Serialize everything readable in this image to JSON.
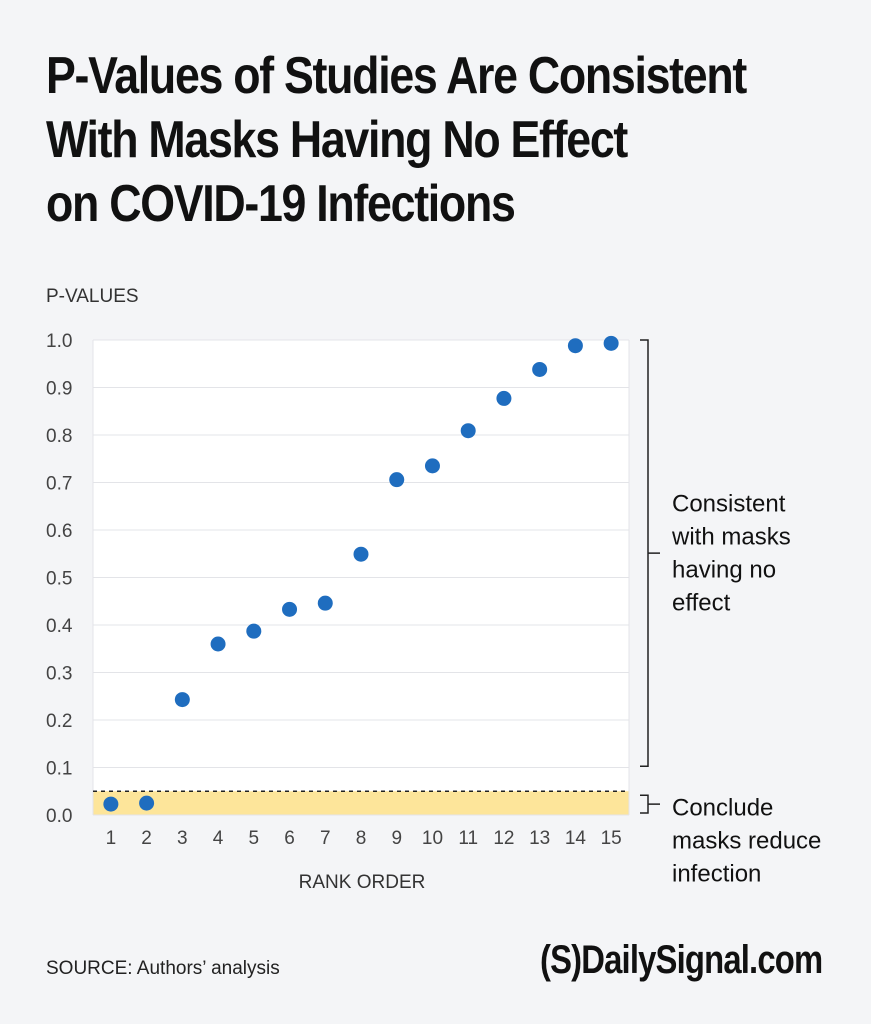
{
  "title_lines": [
    "P-Values of Studies Are Consistent",
    "With Masks Having No Effect",
    "on COVID-19 Infections"
  ],
  "source": "SOURCE: Authors’ analysis",
  "brand": "(S)DailySignal.com",
  "chart_data": {
    "type": "scatter",
    "ylabel": "P-VALUES",
    "xlabel": "RANK ORDER",
    "x": [
      1,
      2,
      3,
      4,
      5,
      6,
      7,
      8,
      9,
      10,
      11,
      12,
      13,
      14,
      15
    ],
    "y": [
      0.023,
      0.025,
      0.243,
      0.36,
      0.387,
      0.433,
      0.446,
      0.549,
      0.706,
      0.735,
      0.809,
      0.877,
      0.938,
      0.988,
      0.993
    ],
    "x_ticks": [
      "1",
      "2",
      "3",
      "4",
      "5",
      "6",
      "7",
      "8",
      "9",
      "10",
      "11",
      "12",
      "13",
      "14",
      "15"
    ],
    "y_ticks": [
      "0.0",
      "0.1",
      "0.2",
      "0.3",
      "0.4",
      "0.5",
      "0.6",
      "0.7",
      "0.8",
      "0.9",
      "1.0"
    ],
    "ylim": [
      0,
      1.0
    ],
    "xlim": [
      0.5,
      15.5
    ],
    "grid": true,
    "point_color": "#1f6dbf",
    "threshold": 0.05,
    "threshold_band_color": "#fde59a",
    "annotations": [
      {
        "lines": [
          "Consistent",
          "with masks",
          "having no",
          "effect"
        ],
        "range": [
          0.05,
          1.0
        ]
      },
      {
        "lines": [
          "Conclude",
          "masks reduce",
          "infection"
        ],
        "range": [
          0,
          0.05
        ]
      }
    ]
  }
}
